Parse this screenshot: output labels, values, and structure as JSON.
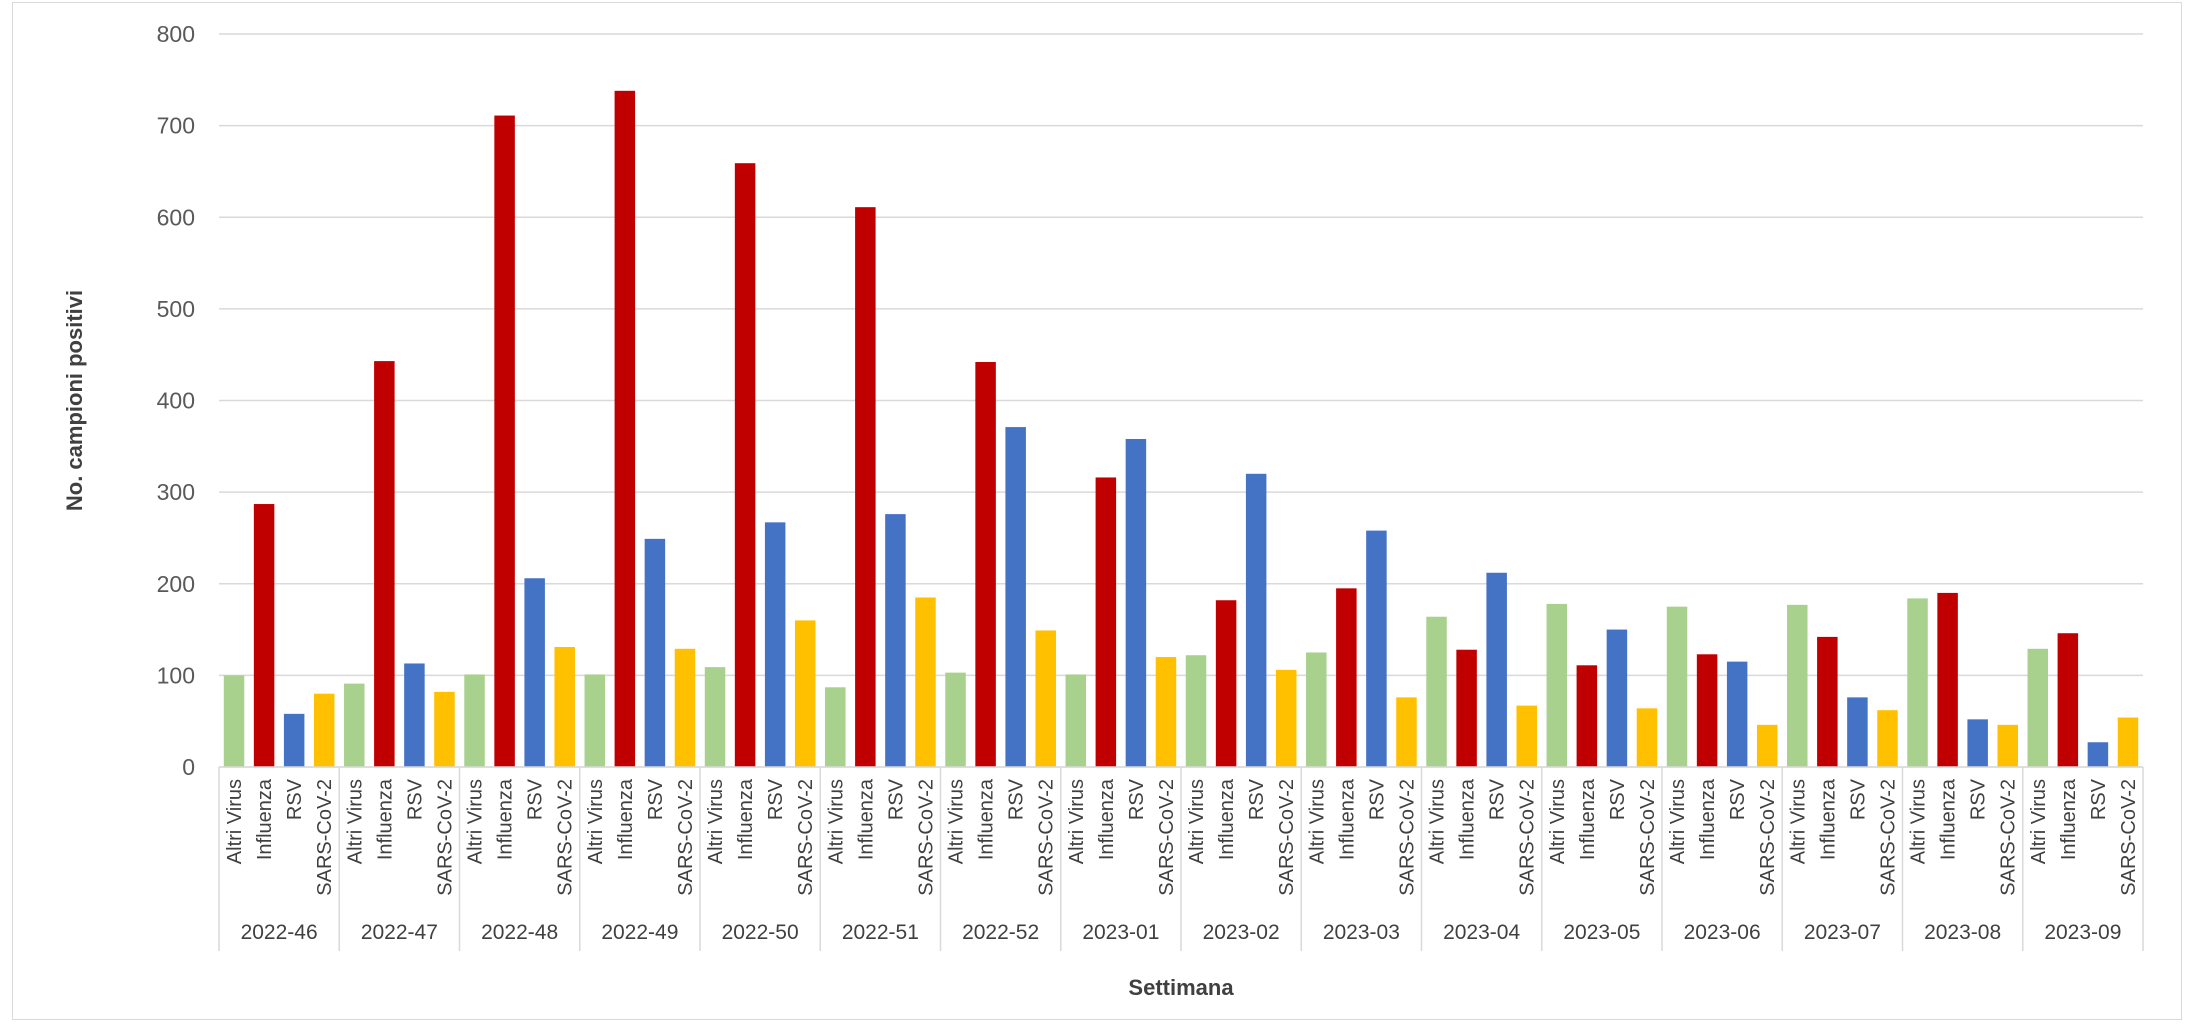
{
  "chart_data": {
    "type": "bar",
    "title": "",
    "xlabel": "Settimana",
    "ylabel": "No. campioni positivi",
    "ylim": [
      0,
      800
    ],
    "yticks": [
      0,
      100,
      200,
      300,
      400,
      500,
      600,
      700,
      800
    ],
    "grid": true,
    "legend": "none",
    "categories": [
      "Altri Virus",
      "Influenza",
      "RSV",
      "SARS-CoV-2"
    ],
    "colors": {
      "Altri Virus": "#a9d18e",
      "Influenza": "#c00000",
      "RSV": "#4472c4",
      "SARS-CoV-2": "#ffc000"
    },
    "groups": [
      {
        "label": "2022-46",
        "values": [
          100,
          287,
          58,
          80
        ]
      },
      {
        "label": "2022-47",
        "values": [
          91,
          443,
          113,
          82
        ]
      },
      {
        "label": "2022-48",
        "values": [
          101,
          711,
          206,
          131
        ]
      },
      {
        "label": "2022-49",
        "values": [
          101,
          738,
          249,
          129
        ]
      },
      {
        "label": "2022-50",
        "values": [
          109,
          659,
          267,
          160
        ]
      },
      {
        "label": "2022-51",
        "values": [
          87,
          611,
          276,
          185
        ]
      },
      {
        "label": "2022-52",
        "values": [
          103,
          442,
          371,
          149
        ]
      },
      {
        "label": "2023-01",
        "values": [
          101,
          316,
          358,
          120
        ]
      },
      {
        "label": "2023-02",
        "values": [
          122,
          182,
          320,
          106
        ]
      },
      {
        "label": "2023-03",
        "values": [
          125,
          195,
          258,
          76
        ]
      },
      {
        "label": "2023-04",
        "values": [
          164,
          128,
          212,
          67
        ]
      },
      {
        "label": "2023-05",
        "values": [
          178,
          111,
          150,
          64
        ]
      },
      {
        "label": "2023-06",
        "values": [
          175,
          123,
          115,
          46
        ]
      },
      {
        "label": "2023-07",
        "values": [
          177,
          142,
          76,
          62
        ]
      },
      {
        "label": "2023-08",
        "values": [
          184,
          190,
          52,
          46
        ]
      },
      {
        "label": "2023-09",
        "values": [
          129,
          146,
          27,
          54
        ]
      }
    ]
  }
}
